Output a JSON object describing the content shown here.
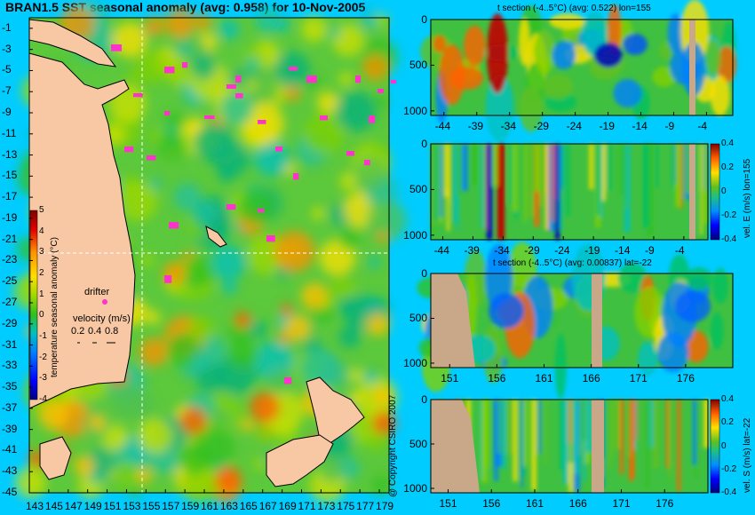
{
  "title": "BRAN1.5 SST seasonal anomaly (avg: 0.958) for 10-Nov-2005",
  "copyright": "@ Copyright CSIRO 2007",
  "colors": {
    "background": "#00ccff",
    "land": "#f7c8a3",
    "section_land": "#c8a888",
    "drifter": "#ff33cc",
    "crosshair": "#ffffff"
  },
  "colormap": [
    "#00007f",
    "#0000ff",
    "#0080ff",
    "#00c0c0",
    "#00c060",
    "#30c020",
    "#7fd000",
    "#d0e000",
    "#ffc000",
    "#ff6000",
    "#e00000",
    "#800000"
  ],
  "chart_data": [
    {
      "name": "sst_map",
      "type": "heatmap",
      "variable": "SST seasonal anomaly",
      "xlim": [
        143,
        180
      ],
      "ylim": [
        -45,
        0
      ],
      "x_ticks": [
        "143",
        "145",
        "147",
        "149",
        "151",
        "153",
        "155",
        "157",
        "159",
        "161",
        "163",
        "165",
        "167",
        "169",
        "171",
        "173",
        "175",
        "177",
        "179"
      ],
      "y_ticks": [
        "-1",
        "-3",
        "-5",
        "-7",
        "-9",
        "-11",
        "-13",
        "-15",
        "-17",
        "-19",
        "-21",
        "-23",
        "-25",
        "-27",
        "-29",
        "-31",
        "-33",
        "-35",
        "-37",
        "-39",
        "-41",
        "-43",
        "-45"
      ],
      "crosshair": {
        "lon": 155,
        "lat": -22
      },
      "colorbar": {
        "label": "temperature seasonal anomaly (°C)",
        "ticks": [
          "5",
          "4",
          "3",
          "2",
          "1",
          "0",
          "-1",
          "-2",
          "-3",
          "-4"
        ],
        "range": [
          -4,
          5
        ]
      },
      "legend": {
        "drifter_label": "drifter",
        "velocity_label": "velocity (m/s)",
        "velocity_values": [
          "0.2",
          "0.4",
          "0.8"
        ]
      }
    },
    {
      "name": "t_section_lon",
      "type": "heatmap",
      "title": "t section (-4..5°C) (avg: 0.522) lon=155",
      "x_ticks": [
        "-44",
        "-39",
        "-34",
        "-29",
        "-24",
        "-19",
        "-14",
        "-9",
        "-4"
      ],
      "y_ticks": [
        "0",
        "500",
        "1000"
      ],
      "xlim": [
        -46,
        0
      ],
      "ylim": [
        1050,
        0
      ]
    },
    {
      "name": "vel_e_section",
      "type": "heatmap",
      "x_ticks": [
        "-44",
        "-39",
        "-34",
        "-29",
        "-24",
        "-19",
        "-14",
        "-9",
        "-4"
      ],
      "y_ticks": [
        "0",
        "500",
        "1000"
      ],
      "xlim": [
        -46,
        0
      ],
      "ylim": [
        1050,
        0
      ],
      "colorbar": {
        "label": "vel. E (m/s) lon=155",
        "ticks": [
          "0.4",
          "0.2",
          "0",
          "-0.2",
          "-0.4"
        ],
        "range": [
          -0.4,
          0.4
        ]
      }
    },
    {
      "name": "t_section_lat",
      "type": "heatmap",
      "title": "t section (-4..5°C) (avg: 0.00837) lat=-22",
      "x_ticks": [
        "151",
        "156",
        "161",
        "166",
        "171",
        "176"
      ],
      "y_ticks": [
        "0",
        "500",
        "1000"
      ],
      "xlim": [
        149,
        181
      ],
      "ylim": [
        1050,
        0
      ]
    },
    {
      "name": "vel_s_section",
      "type": "heatmap",
      "x_ticks": [
        "151",
        "156",
        "161",
        "166",
        "171",
        "176"
      ],
      "y_ticks": [
        "0",
        "500",
        "1000"
      ],
      "xlim": [
        149,
        181
      ],
      "ylim": [
        1050,
        0
      ],
      "colorbar": {
        "label": "vel. S (m/s) lat=-22",
        "ticks": [
          "0.4",
          "0.2",
          "0",
          "-0.2",
          "-0.4"
        ],
        "range": [
          -0.4,
          0.4
        ]
      }
    }
  ]
}
